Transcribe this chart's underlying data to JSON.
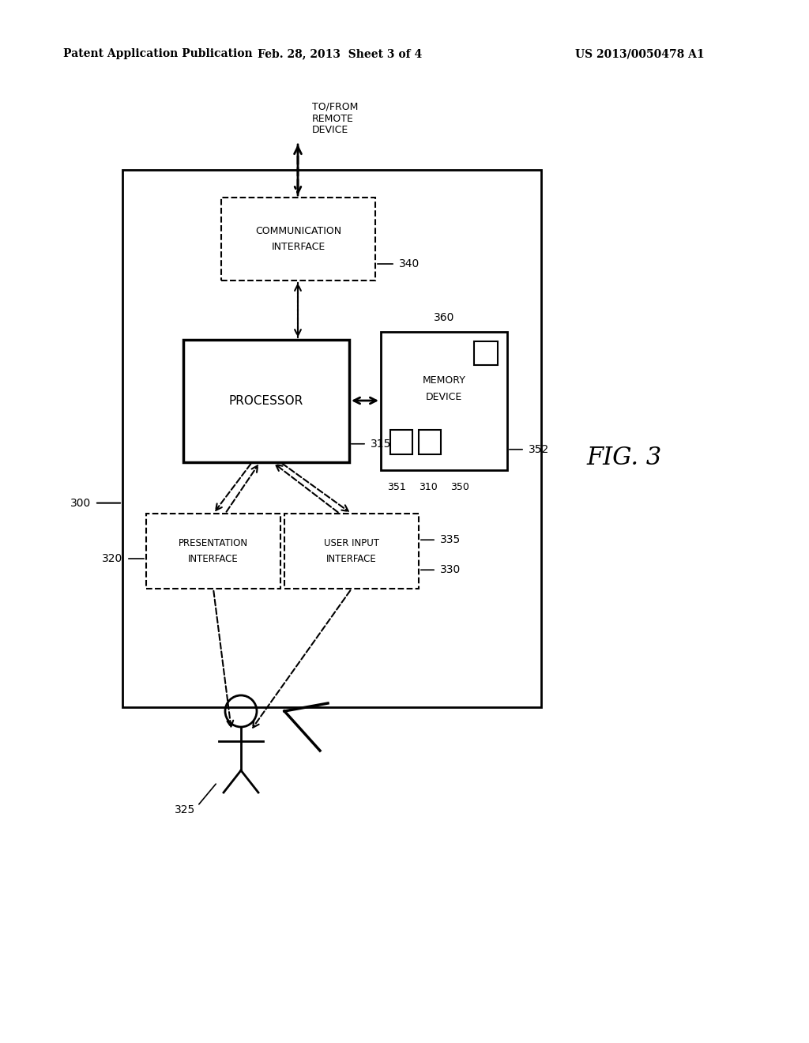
{
  "bg_color": "#ffffff",
  "header_left": "Patent Application Publication",
  "header_mid": "Feb. 28, 2013  Sheet 3 of 4",
  "header_right": "US 2013/0050478 A1",
  "fig_label": "FIG. 3",
  "comm_label": [
    "COMMUNICATION",
    "INTERFACE"
  ],
  "comm_num": "340",
  "proc_label": "PROCESSOR",
  "proc_num": "315",
  "mem_label": [
    "MEMORY",
    "DEVICE"
  ],
  "mem_num": "360",
  "mem_num2": "352",
  "pres_label": [
    "PRESENTATION",
    "INTERFACE"
  ],
  "pres_num": "320",
  "user_label": [
    "USER INPUT",
    "INTERFACE"
  ],
  "user_num": "330",
  "user_num2": "335",
  "remote_label": [
    "TO/FROM",
    "REMOTE",
    "DEVICE"
  ],
  "label_300": "300",
  "label_310": "310",
  "label_350": "350",
  "label_351": "351",
  "label_325": "325"
}
